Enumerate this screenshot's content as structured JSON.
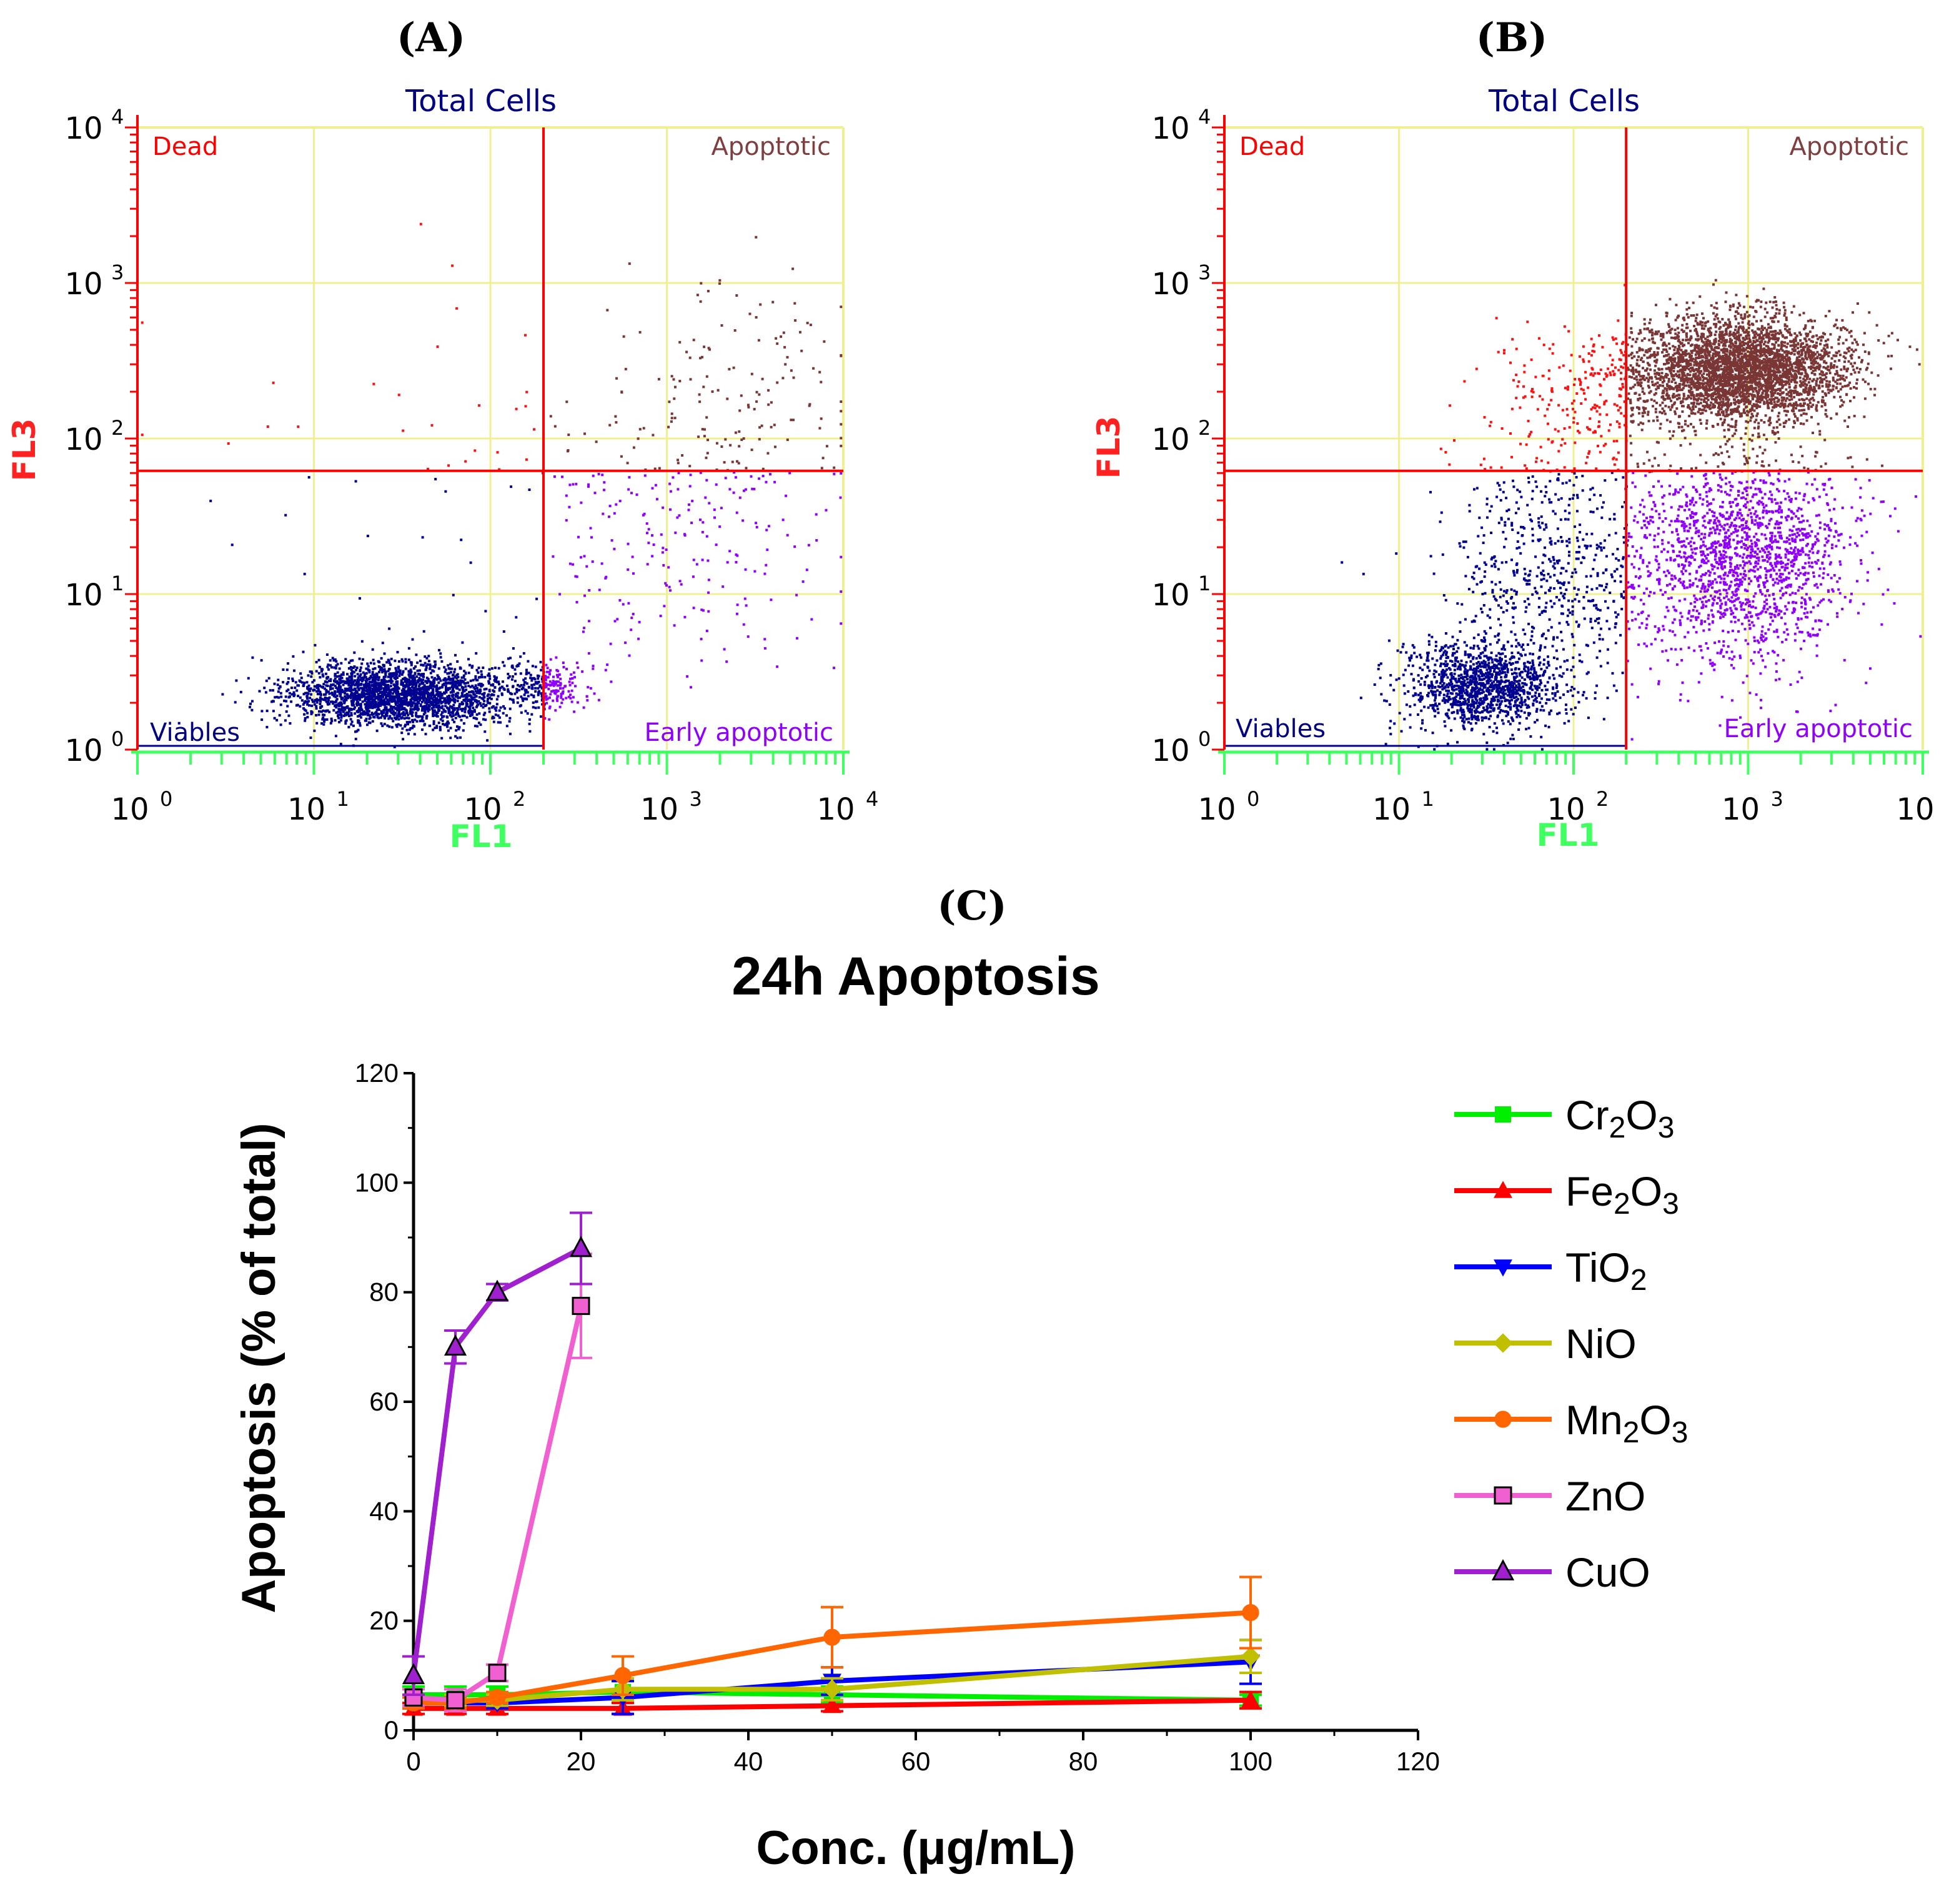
{
  "flow_panels": [
    {
      "id": "A",
      "letter": "A",
      "title": "Total Cells",
      "quadrants": {
        "ul": "Dead",
        "ur": "Apoptotic",
        "ll": "Viables",
        "lr": "Early apoptotic"
      },
      "x_label": "FL1",
      "y_label": "FL3",
      "gate": {
        "x": 200,
        "y": 62
      },
      "clusters": [
        {
          "cx": 30,
          "cy": 2.3,
          "sx": 0.32,
          "sy": 0.1,
          "n": 2400
        },
        {
          "cx": 200,
          "cy": 2.6,
          "sx": 0.12,
          "sy": 0.08,
          "n": 220
        },
        {
          "cx": 1200,
          "cy": 30,
          "sx": 0.45,
          "sy": 0.5,
          "n": 300
        },
        {
          "cx": 3000,
          "cy": 250,
          "sx": 0.3,
          "sy": 0.35,
          "n": 90
        },
        {
          "cx": 30,
          "cy": 80,
          "sx": 0.9,
          "sy": 0.7,
          "n": 45
        }
      ]
    },
    {
      "id": "B",
      "letter": "B",
      "title": "Total Cells",
      "quadrants": {
        "ul": "Dead",
        "ur": "Apoptotic",
        "ll": "Viables",
        "lr": "Early apoptotic"
      },
      "x_label": "FL1",
      "y_label": "FL3",
      "gate": {
        "x": 200,
        "y": 62
      },
      "clusters": [
        {
          "cx": 30,
          "cy": 2.6,
          "sx": 0.22,
          "sy": 0.14,
          "n": 1300
        },
        {
          "cx": 70,
          "cy": 15,
          "sx": 0.3,
          "sy": 0.4,
          "n": 650
        },
        {
          "cx": 900,
          "cy": 280,
          "sx": 0.3,
          "sy": 0.17,
          "n": 3600
        },
        {
          "cx": 900,
          "cy": 18,
          "sx": 0.32,
          "sy": 0.34,
          "n": 1800
        },
        {
          "cx": 120,
          "cy": 180,
          "sx": 0.3,
          "sy": 0.22,
          "n": 230
        }
      ]
    }
  ],
  "panel_c": {
    "letter": "C",
    "legend_order": [
      "Cr2O3",
      "Fe2O3",
      "TiO2",
      "NiO",
      "Mn2O3",
      "ZnO",
      "CuO"
    ]
  },
  "chart_data": {
    "type": "line",
    "title": "24h Apoptosis",
    "xlabel": "Conc. (μg/mL)",
    "ylabel": "Apoptosis (% of total)",
    "xlim": [
      0,
      120
    ],
    "ylim": [
      0,
      120
    ],
    "xticks": [
      0,
      20,
      40,
      60,
      80,
      100,
      120
    ],
    "yticks": [
      0,
      20,
      40,
      60,
      80,
      100,
      120
    ],
    "series": [
      {
        "name": "Cr2O3",
        "color": "#00ee00",
        "marker": "square",
        "x": [
          0,
          5,
          10,
          25,
          50,
          100
        ],
        "values": [
          6.5,
          6.5,
          6.5,
          7.0,
          6.5,
          5.5
        ],
        "errors": [
          1.5,
          1.5,
          1.5,
          2.0,
          1.5,
          1.0
        ]
      },
      {
        "name": "Fe2O3",
        "color": "#ff0000",
        "marker": "triangle-up",
        "x": [
          0,
          5,
          10,
          25,
          50,
          100
        ],
        "values": [
          4.0,
          4.0,
          4.0,
          4.0,
          4.5,
          5.5
        ],
        "errors": [
          1.0,
          1.0,
          1.0,
          1.0,
          1.0,
          1.5
        ]
      },
      {
        "name": "TiO2",
        "color": "#0000ff",
        "marker": "triangle-down",
        "x": [
          0,
          5,
          10,
          25,
          50,
          100
        ],
        "values": [
          5.0,
          5.0,
          5.0,
          6.0,
          9.0,
          12.5
        ],
        "errors": [
          1.0,
          1.0,
          1.0,
          3.0,
          2.5,
          4.0
        ]
      },
      {
        "name": "NiO",
        "color": "#c0c000",
        "marker": "diamond",
        "x": [
          0,
          5,
          10,
          25,
          50,
          100
        ],
        "values": [
          5.5,
          5.5,
          5.5,
          7.5,
          7.5,
          13.5
        ],
        "errors": [
          1.0,
          1.0,
          1.0,
          2.0,
          2.0,
          3.0
        ]
      },
      {
        "name": "Mn2O3",
        "color": "#ff6600",
        "marker": "circle",
        "x": [
          0,
          5,
          10,
          25,
          50,
          100
        ],
        "values": [
          5.0,
          5.0,
          6.0,
          10.0,
          17.0,
          21.5
        ],
        "errors": [
          1.0,
          1.0,
          1.0,
          3.5,
          5.5,
          6.5
        ]
      },
      {
        "name": "ZnO",
        "color": "#f060d0",
        "marker": "square-open",
        "x": [
          0,
          5,
          10,
          20
        ],
        "values": [
          6.0,
          5.5,
          10.5,
          77.5
        ],
        "errors": [
          1.5,
          2.0,
          1.5,
          9.5
        ]
      },
      {
        "name": "CuO",
        "color": "#a020d0",
        "marker": "triangle-open",
        "x": [
          0,
          5,
          10,
          20
        ],
        "values": [
          10.0,
          70.0,
          80.0,
          88.0
        ],
        "errors": [
          3.5,
          3.0,
          1.5,
          6.5
        ]
      }
    ]
  }
}
